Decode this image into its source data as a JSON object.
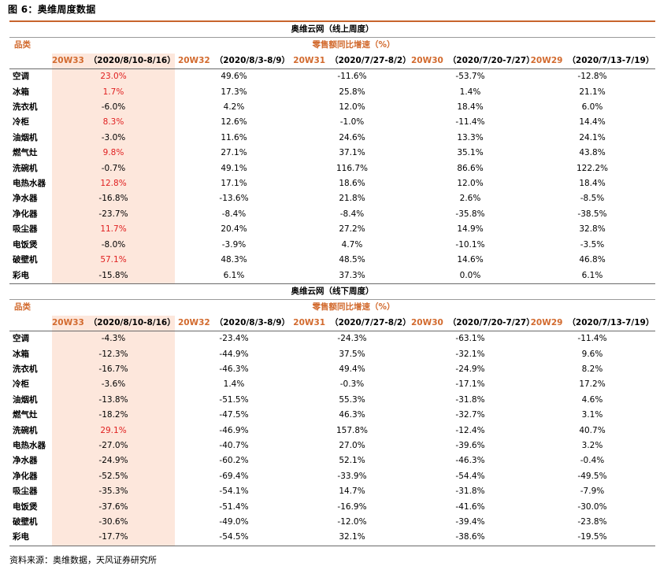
{
  "figure_title": "图 6：奥维周度数据",
  "source": "资料来源：奥维数据，天风证券研究所",
  "category_label": "品类",
  "metric_label": "零售额同比增速（%）",
  "weeks": [
    {
      "code": "20W33",
      "range": "（2020/8/10-8/16）"
    },
    {
      "code": "20W32",
      "range": "（2020/8/3-8/9）"
    },
    {
      "code": "20W31",
      "range": "（2020/7/27-8/2）"
    },
    {
      "code": "20W30",
      "range": "（2020/7/20-7/27）"
    },
    {
      "code": "20W29",
      "range": "（2020/7/13-7/19）"
    }
  ],
  "sections": [
    {
      "title": "奥维云网（线上周度）",
      "rows": [
        {
          "name": "空调",
          "values": [
            "23.0%",
            "49.6%",
            "-11.6%",
            "-53.7%",
            "-12.8%"
          ],
          "highlight": true
        },
        {
          "name": "冰箱",
          "values": [
            "1.7%",
            "17.3%",
            "25.8%",
            "1.4%",
            "21.1%"
          ],
          "highlight": true
        },
        {
          "name": "洗衣机",
          "values": [
            "-6.0%",
            "4.2%",
            "12.0%",
            "18.4%",
            "6.0%"
          ],
          "highlight": false
        },
        {
          "name": "冷柜",
          "values": [
            "8.3%",
            "12.6%",
            "-1.0%",
            "-11.4%",
            "14.4%"
          ],
          "highlight": true
        },
        {
          "name": "油烟机",
          "values": [
            "-3.0%",
            "11.6%",
            "24.6%",
            "13.3%",
            "24.1%"
          ],
          "highlight": false
        },
        {
          "name": "燃气灶",
          "values": [
            "9.8%",
            "27.1%",
            "37.1%",
            "35.1%",
            "43.8%"
          ],
          "highlight": true
        },
        {
          "name": "洗碗机",
          "values": [
            "-0.7%",
            "49.1%",
            "116.7%",
            "86.6%",
            "122.2%"
          ],
          "highlight": false
        },
        {
          "name": "电热水器",
          "values": [
            "12.8%",
            "17.1%",
            "18.6%",
            "12.0%",
            "18.4%"
          ],
          "highlight": true
        },
        {
          "name": "净水器",
          "values": [
            "-16.8%",
            "-13.6%",
            "21.8%",
            "2.6%",
            "-8.5%"
          ],
          "highlight": false
        },
        {
          "name": "净化器",
          "values": [
            "-23.7%",
            "-8.4%",
            "-8.4%",
            "-35.8%",
            "-38.5%"
          ],
          "highlight": false
        },
        {
          "name": "吸尘器",
          "values": [
            "11.7%",
            "20.4%",
            "27.2%",
            "14.9%",
            "32.8%"
          ],
          "highlight": true
        },
        {
          "name": "电饭煲",
          "values": [
            "-8.0%",
            "-3.9%",
            "4.7%",
            "-10.1%",
            "-3.5%"
          ],
          "highlight": false
        },
        {
          "name": "破壁机",
          "values": [
            "57.1%",
            "48.3%",
            "48.5%",
            "14.6%",
            "46.8%"
          ],
          "highlight": true
        },
        {
          "name": "彩电",
          "values": [
            "-15.8%",
            "6.1%",
            "37.3%",
            "0.0%",
            "6.1%"
          ],
          "highlight": false
        }
      ]
    },
    {
      "title": "奥维云网（线下周度）",
      "rows": [
        {
          "name": "空调",
          "values": [
            "-4.3%",
            "-23.4%",
            "-24.3%",
            "-63.1%",
            "-11.4%"
          ],
          "highlight": false
        },
        {
          "name": "冰箱",
          "values": [
            "-12.3%",
            "-44.9%",
            "37.5%",
            "-32.1%",
            "9.6%"
          ],
          "highlight": false
        },
        {
          "name": "洗衣机",
          "values": [
            "-16.7%",
            "-46.3%",
            "49.4%",
            "-24.9%",
            "8.2%"
          ],
          "highlight": false
        },
        {
          "name": "冷柜",
          "values": [
            "-3.6%",
            "1.4%",
            "-0.3%",
            "-17.1%",
            "17.2%"
          ],
          "highlight": false
        },
        {
          "name": "油烟机",
          "values": [
            "-13.8%",
            "-51.5%",
            "55.3%",
            "-31.8%",
            "4.6%"
          ],
          "highlight": false
        },
        {
          "name": "燃气灶",
          "values": [
            "-18.2%",
            "-47.5%",
            "46.3%",
            "-32.7%",
            "3.1%"
          ],
          "highlight": false
        },
        {
          "name": "洗碗机",
          "values": [
            "29.1%",
            "-46.9%",
            "157.8%",
            "-12.4%",
            "40.7%"
          ],
          "highlight": true
        },
        {
          "name": "电热水器",
          "values": [
            "-27.0%",
            "-40.7%",
            "27.0%",
            "-39.6%",
            "3.2%"
          ],
          "highlight": false
        },
        {
          "name": "净水器",
          "values": [
            "-24.9%",
            "-60.2%",
            "52.1%",
            "-46.3%",
            "-0.4%"
          ],
          "highlight": false
        },
        {
          "name": "净化器",
          "values": [
            "-52.5%",
            "-69.4%",
            "-33.9%",
            "-54.4%",
            "-49.5%"
          ],
          "highlight": false
        },
        {
          "name": "吸尘器",
          "values": [
            "-35.3%",
            "-54.1%",
            "14.7%",
            "-31.8%",
            "-7.9%"
          ],
          "highlight": false
        },
        {
          "name": "电饭煲",
          "values": [
            "-37.6%",
            "-51.4%",
            "-16.9%",
            "-41.6%",
            "-30.0%"
          ],
          "highlight": false
        },
        {
          "name": "破壁机",
          "values": [
            "-30.6%",
            "-49.0%",
            "-12.0%",
            "-39.4%",
            "-23.8%"
          ],
          "highlight": false
        },
        {
          "name": "彩电",
          "values": [
            "-17.7%",
            "-54.5%",
            "32.1%",
            "-38.6%",
            "-19.5%"
          ],
          "highlight": false
        }
      ]
    }
  ],
  "colors": {
    "accent": "#d26a2e",
    "highlight_bg": "#fde7dc",
    "positive_red": "#e02020"
  }
}
